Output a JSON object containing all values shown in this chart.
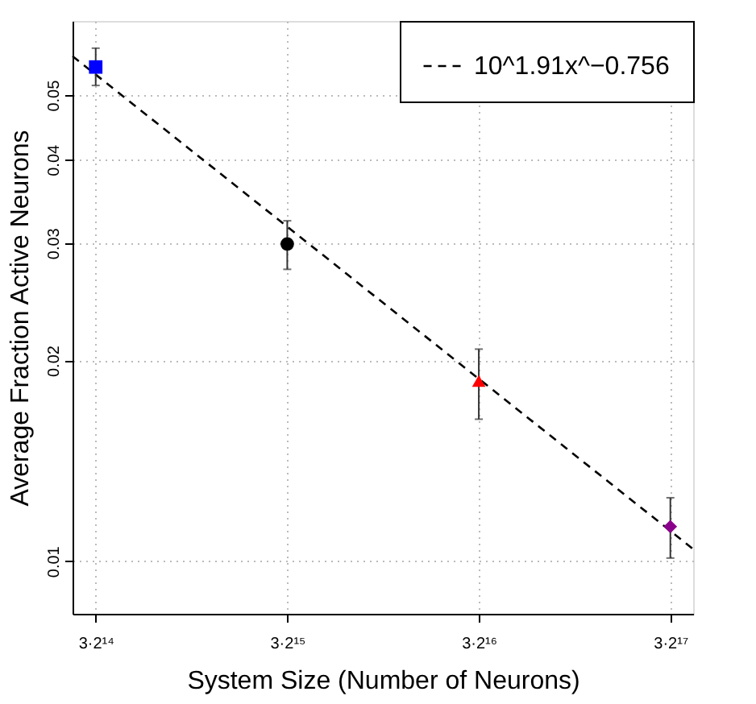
{
  "chart_data": {
    "type": "scatter",
    "xlabel": "System Size (Number of Neurons)",
    "ylabel": "Average Fraction Active Neurons",
    "log": "xy",
    "grid": true,
    "legend": "top right",
    "xlim": [
      45200,
      427000
    ],
    "xticks": [
      {
        "value": 49152,
        "label": "3·2¹⁴"
      },
      {
        "value": 98304,
        "label": "3·2¹⁵"
      },
      {
        "value": 196608,
        "label": "3·2¹⁶"
      },
      {
        "value": 393216,
        "label": "3·2¹⁷"
      }
    ],
    "ylim": [
      0.00834,
      0.0646
    ],
    "yticks": [
      0.01,
      0.02,
      0.03,
      0.04,
      0.05
    ],
    "series": [
      {
        "type": "line",
        "name": "10^1.91x^−0.756",
        "color": "#000000",
        "line_style": "dashed",
        "marker": "none",
        "x": [
          45200,
          427000
        ],
        "values": [
          0.0572,
          0.01043
        ]
      },
      {
        "color": "#0000ff",
        "marker": "square",
        "x": [
          49152
        ],
        "values": [
          0.0551
        ],
        "errors": [
          [
            0.0517,
            0.0588
          ]
        ]
      },
      {
        "color": "#000000",
        "marker": "circle",
        "x": [
          98304
        ],
        "values": [
          0.0299
        ],
        "errors": [
          [
            0.0274,
            0.0324
          ]
        ]
      },
      {
        "color": "#ff0000",
        "marker": "triangle",
        "x": [
          196608
        ],
        "values": [
          0.01863
        ],
        "errors": [
          [
            0.01633,
            0.0208
          ]
        ]
      },
      {
        "color": "#8b008b",
        "marker": "diamond",
        "x": [
          393216
        ],
        "values": [
          0.01127
        ],
        "errors": [
          [
            0.01011,
            0.01245
          ]
        ]
      }
    ]
  }
}
